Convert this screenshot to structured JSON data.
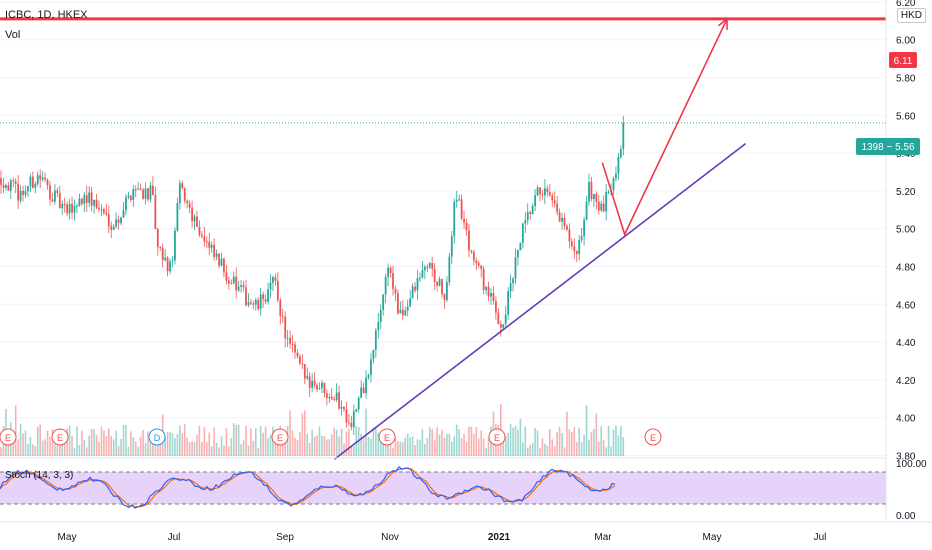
{
  "header": {
    "symbol": "ICBC, 1D, HKEX",
    "volume_label": "Vol",
    "currency": "HKD"
  },
  "price_axis": {
    "ticks": [
      "6.20",
      "6.00",
      "5.80",
      "5.60",
      "5.40",
      "5.20",
      "5.00",
      "4.80",
      "4.60",
      "4.40",
      "4.20",
      "4.00",
      "3.80"
    ]
  },
  "badges": {
    "resistance": "6.11",
    "last_price": "1398 − 5.56"
  },
  "stoch": {
    "label": "Stoch (14, 3, 3)",
    "upper_tick": "100.00",
    "lower_tick": "0.00"
  },
  "time_axis": {
    "labels": [
      "May",
      "Jul",
      "Sep",
      "Nov",
      "2021",
      "Mar",
      "May",
      "Jul"
    ]
  },
  "events": [
    "E",
    "E",
    "D",
    "E",
    "E",
    "E",
    "E"
  ],
  "colors": {
    "up": "#26a69a",
    "down": "#ef5350",
    "resistance": "#f23645",
    "trendline": "#673ab7",
    "arrow": "#f23645",
    "stoch_fill": "#e1c7f7",
    "stoch_k": "#2962ff",
    "stoch_d": "#ff6d00",
    "last_price": "#26a69a",
    "dividend": "#2196f3"
  },
  "chart_data": {
    "type": "candlestick",
    "y_range": [
      3.72,
      6.28
    ],
    "resistance_level": 6.11,
    "last_price": 5.56,
    "close_path": [
      {
        "date": "2020-04-01",
        "close": 5.3
      },
      {
        "date": "2020-04-15",
        "close": 5.18
      },
      {
        "date": "2020-04-25",
        "close": 5.28
      },
      {
        "date": "2020-05-10",
        "close": 5.08
      },
      {
        "date": "2020-05-20",
        "close": 5.18
      },
      {
        "date": "2020-06-05",
        "close": 5.02
      },
      {
        "date": "2020-06-15",
        "close": 5.22
      },
      {
        "date": "2020-06-25",
        "close": 5.18
      },
      {
        "date": "2020-06-28",
        "close": 4.88
      },
      {
        "date": "2020-07-05",
        "close": 4.78
      },
      {
        "date": "2020-07-10",
        "close": 5.22
      },
      {
        "date": "2020-07-25",
        "close": 4.9
      },
      {
        "date": "2020-08-10",
        "close": 4.68
      },
      {
        "date": "2020-08-20",
        "close": 4.58
      },
      {
        "date": "2020-08-30",
        "close": 4.72
      },
      {
        "date": "2020-09-05",
        "close": 4.42
      },
      {
        "date": "2020-09-15",
        "close": 4.22
      },
      {
        "date": "2020-10-01",
        "close": 4.12
      },
      {
        "date": "2020-10-10",
        "close": 3.98
      },
      {
        "date": "2020-10-20",
        "close": 4.25
      },
      {
        "date": "2020-10-30",
        "close": 4.82
      },
      {
        "date": "2020-11-05",
        "close": 4.52
      },
      {
        "date": "2020-11-20",
        "close": 4.82
      },
      {
        "date": "2020-11-30",
        "close": 4.62
      },
      {
        "date": "2020-12-05",
        "close": 5.22
      },
      {
        "date": "2020-12-12",
        "close": 4.92
      },
      {
        "date": "2020-12-20",
        "close": 4.72
      },
      {
        "date": "2020-12-30",
        "close": 4.48
      },
      {
        "date": "2021-01-10",
        "close": 4.98
      },
      {
        "date": "2021-01-20",
        "close": 5.22
      },
      {
        "date": "2021-02-01",
        "close": 5.02
      },
      {
        "date": "2021-02-08",
        "close": 4.82
      },
      {
        "date": "2021-02-15",
        "close": 5.22
      },
      {
        "date": "2021-02-22",
        "close": 5.08
      },
      {
        "date": "2021-03-01",
        "close": 5.32
      },
      {
        "date": "2021-03-06",
        "close": 5.56
      }
    ],
    "trendline": {
      "start": {
        "date": "2020-10-01",
        "price": 3.78
      },
      "end": {
        "date": "2021-05-10",
        "price": 5.45
      }
    },
    "projection": [
      {
        "date": "2021-02-22",
        "price": 5.35
      },
      {
        "date": "2021-03-06",
        "price": 4.97
      },
      {
        "date": "2021-04-30",
        "price": 6.11
      }
    ],
    "stoch_range": [
      0,
      100
    ]
  }
}
